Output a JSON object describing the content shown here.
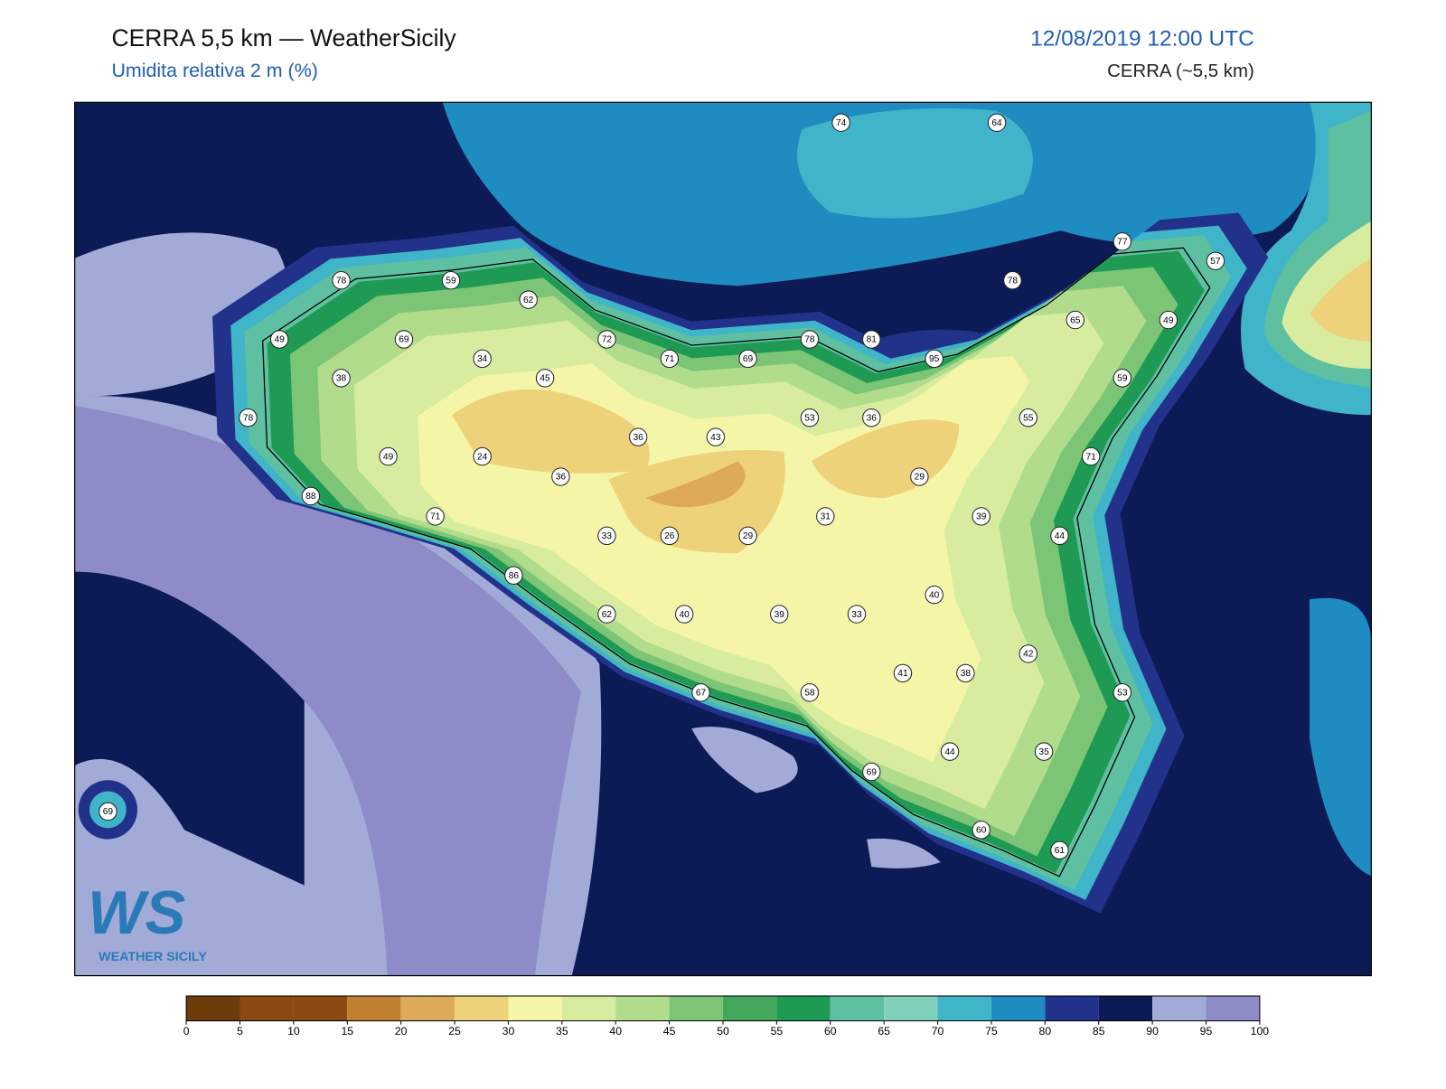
{
  "header": {
    "title": "CERRA 5,5 km — WeatherSicily",
    "subtitle": "Umidita relativa 2 m (%)",
    "date": "12/08/2019 12:00 UTC",
    "model": "CERRA (~5,5 km)"
  },
  "stations": [
    74,
    64,
    77,
    57,
    78,
    59,
    62,
    78,
    65,
    49,
    49,
    69,
    72,
    78,
    81,
    34,
    71,
    69,
    95,
    38,
    45,
    59,
    78,
    53,
    36,
    55,
    36,
    43,
    49,
    24,
    71,
    36,
    29,
    88,
    71,
    31,
    39,
    33,
    26,
    29,
    44,
    86,
    40,
    62,
    40,
    39,
    33,
    42,
    41,
    38,
    67,
    58,
    53,
    44,
    35,
    69,
    69,
    60,
    61
  ],
  "colorbar": {
    "ticks": [
      0,
      5,
      10,
      15,
      20,
      25,
      30,
      35,
      40,
      45,
      50,
      55,
      60,
      65,
      70,
      75,
      80,
      85,
      90,
      95,
      100
    ],
    "colors": [
      "#6e3b0b",
      "#8b4a12",
      "#8b4a12",
      "#c07f30",
      "#dcaa58",
      "#eed27a",
      "#f5f5a8",
      "#d8eca0",
      "#b0dc8c",
      "#7cc576",
      "#44a85c",
      "#1e9a55",
      "#5ec0a0",
      "#80d0bc",
      "#40b4c8",
      "#1e8cc0",
      "#22318a",
      "#0c1a55",
      "#a2aad8",
      "#8e8cc8"
    ]
  },
  "logo": {
    "mark": "WS",
    "text": "WEATHER SICILY"
  }
}
